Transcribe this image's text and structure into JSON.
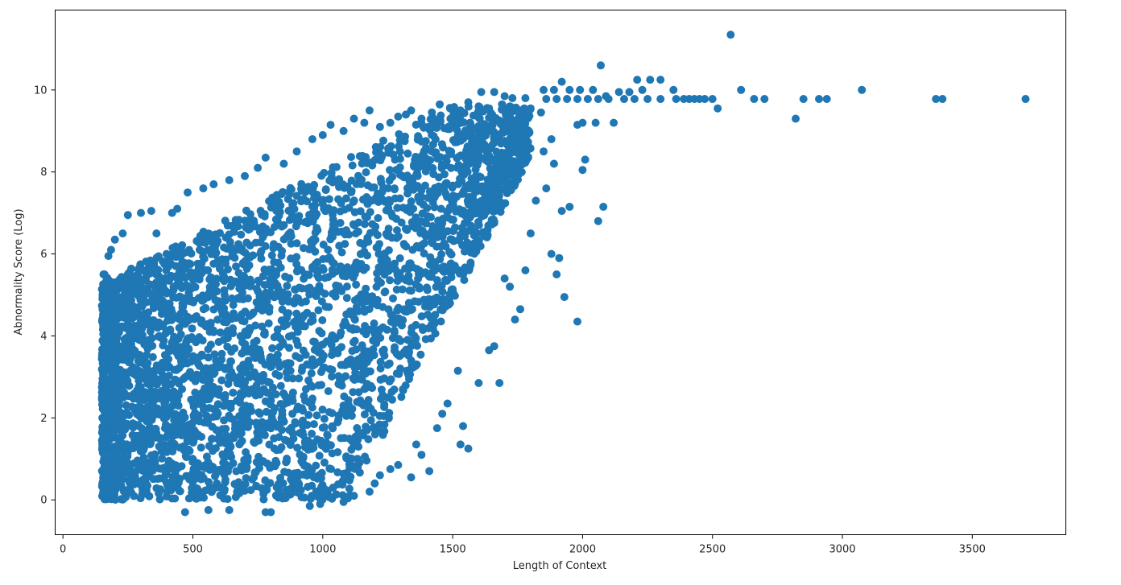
{
  "chart_data": {
    "type": "scatter",
    "title": "",
    "xlabel": "Length of Context",
    "ylabel": "Abnormality Score (Log)",
    "xlim": [
      -30,
      3860
    ],
    "ylim": [
      -0.85,
      11.95
    ],
    "xticks": [
      0,
      500,
      1000,
      1500,
      2000,
      2500,
      3000,
      3500
    ],
    "yticks": [
      0,
      2,
      4,
      6,
      8,
      10
    ],
    "grid": false,
    "legend": "none",
    "marker_color": "#1f77b4",
    "series": [
      {
        "points": [
          [
            2570,
            11.35
          ],
          [
            2070,
            10.6
          ],
          [
            1920,
            10.2
          ],
          [
            2210,
            10.25
          ],
          [
            2260,
            10.25
          ],
          [
            2300,
            10.25
          ],
          [
            1610,
            9.95
          ],
          [
            1660,
            9.95
          ],
          [
            1700,
            9.85
          ],
          [
            1730,
            9.8
          ],
          [
            1780,
            9.8
          ],
          [
            1850,
            10.0
          ],
          [
            1890,
            10.0
          ],
          [
            1950,
            10.0
          ],
          [
            1990,
            10.0
          ],
          [
            2040,
            10.0
          ],
          [
            2090,
            9.85
          ],
          [
            2140,
            9.95
          ],
          [
            2180,
            9.95
          ],
          [
            2230,
            10.0
          ],
          [
            2350,
            10.0
          ],
          [
            2610,
            10.0
          ],
          [
            3075,
            10.0
          ],
          [
            1860,
            9.78
          ],
          [
            1900,
            9.78
          ],
          [
            1940,
            9.78
          ],
          [
            1980,
            9.78
          ],
          [
            2020,
            9.78
          ],
          [
            2060,
            9.78
          ],
          [
            2100,
            9.78
          ],
          [
            2160,
            9.78
          ],
          [
            2200,
            9.78
          ],
          [
            2250,
            9.78
          ],
          [
            2300,
            9.78
          ],
          [
            2360,
            9.78
          ],
          [
            2390,
            9.78
          ],
          [
            2410,
            9.78
          ],
          [
            2430,
            9.78
          ],
          [
            2450,
            9.78
          ],
          [
            2470,
            9.78
          ],
          [
            2500,
            9.78
          ],
          [
            2660,
            9.78
          ],
          [
            2700,
            9.78
          ],
          [
            2850,
            9.78
          ],
          [
            2910,
            9.78
          ],
          [
            2940,
            9.78
          ],
          [
            3360,
            9.78
          ],
          [
            3385,
            9.78
          ],
          [
            3705,
            9.78
          ],
          [
            2520,
            9.55
          ],
          [
            2820,
            9.3
          ],
          [
            2120,
            9.2
          ],
          [
            2050,
            9.2
          ],
          [
            1980,
            9.15
          ],
          [
            2000,
            9.2
          ],
          [
            2010,
            8.3
          ],
          [
            2000,
            8.05
          ],
          [
            2080,
            7.15
          ],
          [
            2060,
            6.8
          ],
          [
            1980,
            4.35
          ],
          [
            1930,
            4.95
          ],
          [
            1910,
            5.9
          ],
          [
            1880,
            6.0
          ],
          [
            1900,
            5.5
          ],
          [
            1920,
            7.05
          ],
          [
            1950,
            7.15
          ],
          [
            1860,
            7.6
          ],
          [
            1890,
            8.2
          ],
          [
            1880,
            8.8
          ],
          [
            1850,
            8.5
          ],
          [
            1820,
            7.3
          ],
          [
            1800,
            6.5
          ],
          [
            1780,
            5.6
          ],
          [
            1760,
            4.65
          ],
          [
            1740,
            4.4
          ],
          [
            1720,
            5.2
          ],
          [
            1700,
            5.4
          ],
          [
            1680,
            2.85
          ],
          [
            1660,
            3.75
          ],
          [
            1640,
            3.65
          ],
          [
            1600,
            2.85
          ],
          [
            1560,
            1.25
          ],
          [
            1540,
            1.8
          ],
          [
            1530,
            1.35
          ],
          [
            1520,
            3.15
          ],
          [
            1480,
            2.35
          ],
          [
            1460,
            2.1
          ],
          [
            1440,
            1.75
          ],
          [
            1410,
            0.7
          ],
          [
            1380,
            1.1
          ],
          [
            1360,
            1.35
          ],
          [
            1340,
            0.55
          ],
          [
            1290,
            0.85
          ],
          [
            1260,
            0.75
          ],
          [
            1220,
            0.6
          ],
          [
            1200,
            0.4
          ],
          [
            1180,
            0.2
          ],
          [
            1120,
            0.1
          ],
          [
            1080,
            -0.05
          ],
          [
            1040,
            0.3
          ],
          [
            990,
            -0.1
          ],
          [
            950,
            -0.15
          ],
          [
            800,
            -0.3
          ],
          [
            780,
            -0.3
          ],
          [
            640,
            -0.25
          ],
          [
            470,
            -0.3
          ],
          [
            560,
            -0.25
          ],
          [
            160,
            5.5
          ],
          [
            170,
            5.35
          ],
          [
            175,
            5.95
          ],
          [
            185,
            6.1
          ],
          [
            200,
            6.35
          ],
          [
            230,
            6.5
          ],
          [
            250,
            6.95
          ],
          [
            300,
            7.0
          ],
          [
            340,
            7.05
          ],
          [
            360,
            6.5
          ],
          [
            420,
            7.0
          ],
          [
            440,
            7.1
          ],
          [
            480,
            7.5
          ],
          [
            540,
            7.6
          ],
          [
            580,
            7.7
          ],
          [
            640,
            7.8
          ],
          [
            700,
            7.9
          ],
          [
            750,
            8.1
          ],
          [
            780,
            8.35
          ],
          [
            850,
            8.2
          ],
          [
            900,
            8.5
          ],
          [
            960,
            8.8
          ],
          [
            1000,
            8.9
          ],
          [
            1030,
            9.15
          ],
          [
            1080,
            9.0
          ],
          [
            1120,
            9.3
          ],
          [
            1160,
            9.2
          ],
          [
            1180,
            9.5
          ],
          [
            1220,
            9.1
          ],
          [
            1260,
            9.2
          ],
          [
            1290,
            9.35
          ],
          [
            1320,
            9.4
          ],
          [
            1340,
            9.5
          ],
          [
            1380,
            9.3
          ],
          [
            1420,
            9.45
          ],
          [
            1450,
            9.65
          ],
          [
            1490,
            9.55
          ],
          [
            1530,
            9.5
          ],
          [
            1560,
            9.7
          ],
          [
            1600,
            9.6
          ],
          [
            1640,
            9.55
          ],
          [
            1690,
            9.65
          ],
          [
            1720,
            9.6
          ],
          [
            1760,
            9.5
          ],
          [
            1800,
            9.55
          ],
          [
            1840,
            9.45
          ]
        ]
      }
    ]
  }
}
